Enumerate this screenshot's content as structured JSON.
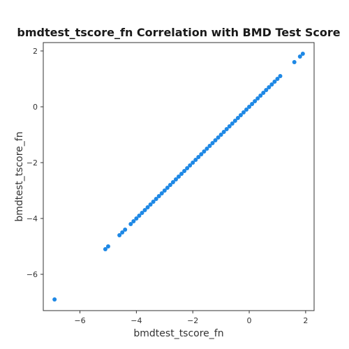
{
  "chart_data": {
    "type": "scatter",
    "title": "bmdtest_tscore_fn Correlation with BMD Test Score",
    "xlabel": "bmdtest_tscore_fn",
    "ylabel": "bmdtest_tscore_fn",
    "xlim": [
      -7.3,
      2.3
    ],
    "ylim": [
      -7.3,
      2.3
    ],
    "xticks": [
      -6,
      -4,
      -2,
      0,
      2
    ],
    "yticks": [
      -6,
      -4,
      -2,
      0,
      2
    ],
    "xtick_labels": [
      "−6",
      "−4",
      "−2",
      "0",
      "2"
    ],
    "ytick_labels": [
      "−6",
      "−4",
      "−2",
      "0",
      "2"
    ],
    "grid": false,
    "marker_color": "#1e88e5",
    "points": [
      [
        -6.9,
        -6.9
      ],
      [
        -5.1,
        -5.1
      ],
      [
        -5.0,
        -5.0
      ],
      [
        -4.6,
        -4.6
      ],
      [
        -4.5,
        -4.5
      ],
      [
        -4.4,
        -4.4
      ],
      [
        -4.2,
        -4.2
      ],
      [
        -4.1,
        -4.1
      ],
      [
        -4.0,
        -4.0
      ],
      [
        -3.9,
        -3.9
      ],
      [
        -3.8,
        -3.8
      ],
      [
        -3.7,
        -3.7
      ],
      [
        -3.6,
        -3.6
      ],
      [
        -3.5,
        -3.5
      ],
      [
        -3.4,
        -3.4
      ],
      [
        -3.3,
        -3.3
      ],
      [
        -3.2,
        -3.2
      ],
      [
        -3.1,
        -3.1
      ],
      [
        -3.0,
        -3.0
      ],
      [
        -2.9,
        -2.9
      ],
      [
        -2.8,
        -2.8
      ],
      [
        -2.7,
        -2.7
      ],
      [
        -2.6,
        -2.6
      ],
      [
        -2.5,
        -2.5
      ],
      [
        -2.4,
        -2.4
      ],
      [
        -2.3,
        -2.3
      ],
      [
        -2.2,
        -2.2
      ],
      [
        -2.1,
        -2.1
      ],
      [
        -2.0,
        -2.0
      ],
      [
        -1.9,
        -1.9
      ],
      [
        -1.8,
        -1.8
      ],
      [
        -1.7,
        -1.7
      ],
      [
        -1.6,
        -1.6
      ],
      [
        -1.5,
        -1.5
      ],
      [
        -1.4,
        -1.4
      ],
      [
        -1.3,
        -1.3
      ],
      [
        -1.2,
        -1.2
      ],
      [
        -1.1,
        -1.1
      ],
      [
        -1.0,
        -1.0
      ],
      [
        -0.9,
        -0.9
      ],
      [
        -0.8,
        -0.8
      ],
      [
        -0.7,
        -0.7
      ],
      [
        -0.6,
        -0.6
      ],
      [
        -0.5,
        -0.5
      ],
      [
        -0.4,
        -0.4
      ],
      [
        -0.3,
        -0.3
      ],
      [
        -0.2,
        -0.2
      ],
      [
        -0.1,
        -0.1
      ],
      [
        0.0,
        0.0
      ],
      [
        0.1,
        0.1
      ],
      [
        0.2,
        0.2
      ],
      [
        0.3,
        0.3
      ],
      [
        0.4,
        0.4
      ],
      [
        0.5,
        0.5
      ],
      [
        0.6,
        0.6
      ],
      [
        0.7,
        0.7
      ],
      [
        0.8,
        0.8
      ],
      [
        0.9,
        0.9
      ],
      [
        1.0,
        1.0
      ],
      [
        1.1,
        1.1
      ],
      [
        1.6,
        1.6
      ],
      [
        1.8,
        1.8
      ],
      [
        1.9,
        1.9
      ]
    ]
  }
}
